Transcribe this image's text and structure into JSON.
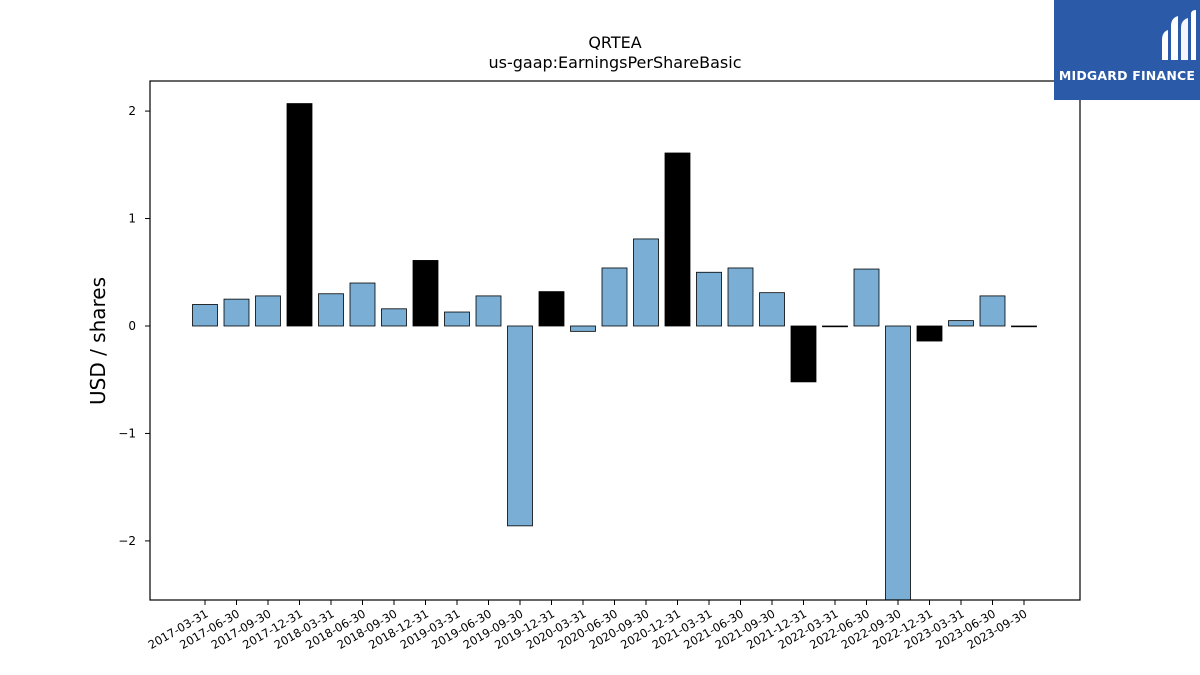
{
  "chart_data": {
    "type": "bar",
    "title": "QRTEA",
    "subtitle": "us-gaap:EarningsPerShareBasic",
    "xlabel": "",
    "ylabel": "USD / shares",
    "ylim": [
      -2.55,
      2.28
    ],
    "yticks": [
      -2,
      -1,
      0,
      1,
      2
    ],
    "ytick_labels": [
      "−2",
      "−1",
      "0",
      "1",
      "2"
    ],
    "grid": false,
    "categories": [
      "2017-03-31",
      "2017-06-30",
      "2017-09-30",
      "2017-12-31",
      "2018-03-31",
      "2018-06-30",
      "2018-09-30",
      "2018-12-31",
      "2019-03-31",
      "2019-06-30",
      "2019-09-30",
      "2019-12-31",
      "2020-03-31",
      "2020-06-30",
      "2020-09-30",
      "2020-12-31",
      "2021-03-31",
      "2021-06-30",
      "2021-09-30",
      "2021-12-31",
      "2022-03-31",
      "2022-06-30",
      "2022-09-30",
      "2022-12-31",
      "2023-03-31",
      "2023-06-30",
      "2023-09-30"
    ],
    "values": [
      0.2,
      0.25,
      0.28,
      2.07,
      0.3,
      0.4,
      0.16,
      0.61,
      0.13,
      0.28,
      -1.86,
      0.32,
      -0.05,
      0.54,
      0.81,
      1.61,
      0.5,
      0.54,
      0.31,
      -0.52,
      0.0,
      0.53,
      -2.55,
      -0.14,
      0.05,
      0.28,
      0.0
    ],
    "bar_colors": [
      "#7aaed4",
      "#7aaed4",
      "#7aaed4",
      "#000000",
      "#7aaed4",
      "#7aaed4",
      "#7aaed4",
      "#000000",
      "#7aaed4",
      "#7aaed4",
      "#7aaed4",
      "#000000",
      "#7aaed4",
      "#7aaed4",
      "#7aaed4",
      "#000000",
      "#7aaed4",
      "#7aaed4",
      "#7aaed4",
      "#000000",
      "#7aaed4",
      "#7aaed4",
      "#7aaed4",
      "#000000",
      "#7aaed4",
      "#7aaed4",
      "#7aaed4"
    ]
  },
  "logo": {
    "text": "MIDGARD FINANCE",
    "background": "#2b5aa8"
  }
}
